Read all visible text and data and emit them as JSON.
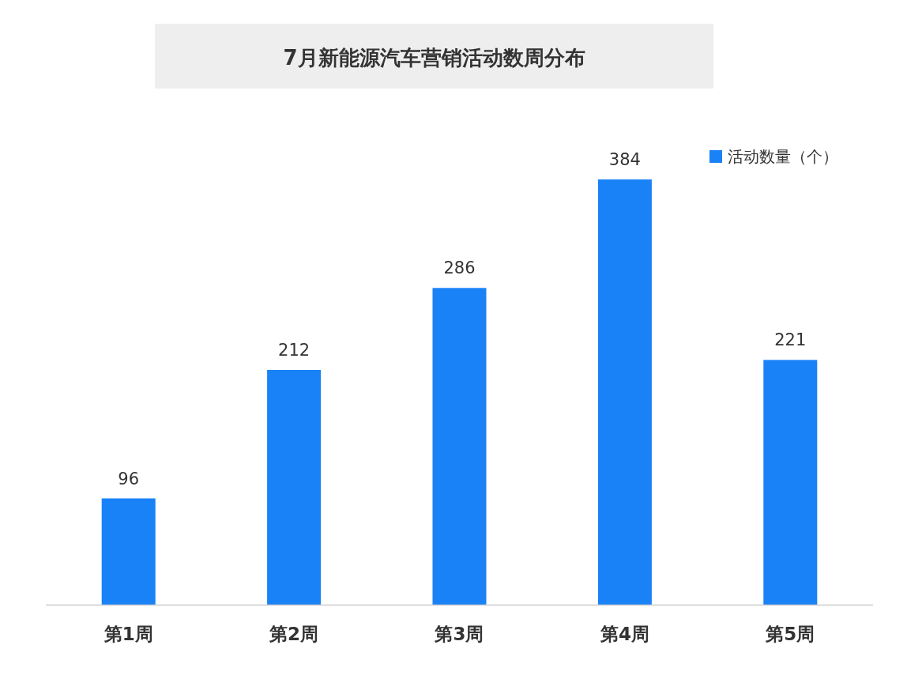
{
  "chart_data": {
    "type": "bar",
    "title": "7月新能源汽车营销活动数周分布",
    "categories": [
      "第1周",
      "第2周",
      "第3周",
      "第4周",
      "第5周"
    ],
    "series": [
      {
        "name": "活动数量（个）",
        "color": "#1a82f7",
        "values": [
          96,
          212,
          286,
          384,
          221
        ]
      }
    ],
    "data_labels": true,
    "legend": "top right"
  }
}
